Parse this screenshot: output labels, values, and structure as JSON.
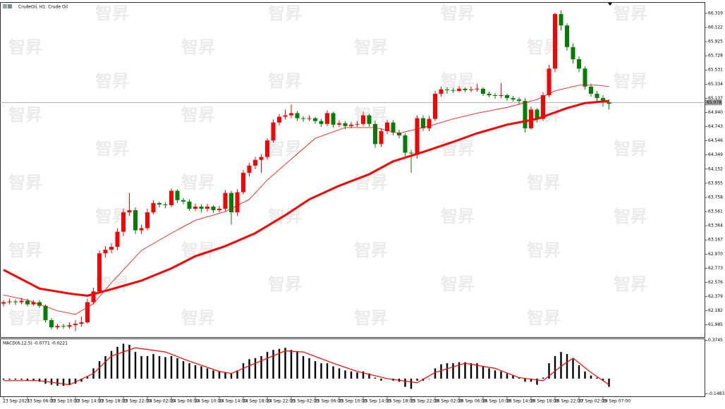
{
  "chart_data": {
    "type": "candlestick",
    "title": "CrudeOil, H1: Crude Oil",
    "watermark": "智昇",
    "up_color": "#ff0000",
    "down_color": "#008000",
    "candles": [
      [
        62.28,
        62.33,
        62.24,
        62.3
      ],
      [
        62.3,
        62.35,
        62.27,
        62.31
      ],
      [
        62.31,
        62.34,
        62.26,
        62.3
      ],
      [
        62.3,
        62.36,
        62.27,
        62.32
      ],
      [
        62.32,
        62.35,
        62.24,
        62.27
      ],
      [
        62.27,
        62.33,
        62.25,
        62.3
      ],
      [
        62.3,
        62.33,
        62.22,
        62.25
      ],
      [
        62.25,
        62.27,
        62.02,
        62.05
      ],
      [
        62.05,
        62.08,
        61.92,
        61.95
      ],
      [
        61.95,
        62.0,
        61.92,
        61.97
      ],
      [
        61.97,
        62.0,
        61.93,
        61.96
      ],
      [
        61.96,
        62.02,
        61.93,
        61.98
      ],
      [
        61.98,
        62.05,
        61.9,
        62.0
      ],
      [
        62.0,
        62.1,
        61.96,
        62.02
      ],
      [
        62.02,
        62.35,
        62.0,
        62.3
      ],
      [
        62.3,
        62.5,
        62.27,
        62.45
      ],
      [
        62.45,
        63.02,
        62.42,
        62.98
      ],
      [
        62.98,
        63.08,
        62.92,
        63.03
      ],
      [
        63.03,
        63.12,
        62.98,
        63.07
      ],
      [
        63.07,
        63.33,
        63.02,
        63.28
      ],
      [
        63.28,
        63.6,
        63.22,
        63.55
      ],
      [
        63.55,
        63.82,
        63.5,
        63.58
      ],
      [
        63.58,
        63.62,
        63.25,
        63.3
      ],
      [
        63.3,
        63.38,
        63.25,
        63.33
      ],
      [
        63.33,
        63.6,
        63.3,
        63.55
      ],
      [
        63.55,
        63.72,
        63.52,
        63.68
      ],
      [
        63.68,
        63.7,
        63.62,
        63.66
      ],
      [
        63.66,
        63.69,
        63.61,
        63.65
      ],
      [
        63.65,
        63.88,
        63.62,
        63.85
      ],
      [
        63.85,
        63.87,
        63.68,
        63.72
      ],
      [
        63.72,
        63.75,
        63.66,
        63.7
      ],
      [
        63.7,
        63.73,
        63.57,
        63.6
      ],
      [
        63.6,
        63.67,
        63.57,
        63.63
      ],
      [
        63.63,
        63.66,
        63.55,
        63.6
      ],
      [
        63.6,
        63.67,
        63.56,
        63.63
      ],
      [
        63.63,
        63.65,
        63.54,
        63.58
      ],
      [
        63.58,
        63.64,
        63.55,
        63.6
      ],
      [
        63.6,
        63.86,
        63.57,
        63.82
      ],
      [
        63.82,
        63.85,
        63.38,
        63.55
      ],
      [
        63.55,
        63.87,
        63.5,
        63.83
      ],
      [
        63.83,
        64.14,
        63.8,
        64.1
      ],
      [
        64.1,
        64.24,
        64.05,
        64.2
      ],
      [
        64.2,
        64.32,
        64.15,
        64.28
      ],
      [
        64.28,
        64.36,
        64.1,
        64.32
      ],
      [
        64.32,
        64.58,
        64.28,
        64.55
      ],
      [
        64.55,
        64.84,
        64.52,
        64.8
      ],
      [
        64.8,
        64.92,
        64.76,
        64.88
      ],
      [
        64.88,
        64.98,
        64.84,
        64.9
      ],
      [
        64.9,
        65.05,
        64.86,
        64.93
      ],
      [
        64.93,
        64.96,
        64.82,
        64.86
      ],
      [
        64.86,
        64.89,
        64.81,
        64.85
      ],
      [
        64.85,
        64.9,
        64.82,
        64.86
      ],
      [
        64.86,
        64.88,
        64.78,
        64.82
      ],
      [
        64.82,
        64.85,
        64.74,
        64.78
      ],
      [
        64.78,
        64.97,
        64.75,
        64.93
      ],
      [
        64.93,
        64.95,
        64.73,
        64.77
      ],
      [
        64.77,
        64.83,
        64.74,
        64.79
      ],
      [
        64.79,
        64.82,
        64.71,
        64.75
      ],
      [
        64.75,
        64.81,
        64.72,
        64.77
      ],
      [
        64.77,
        64.82,
        64.74,
        64.78
      ],
      [
        64.78,
        64.95,
        64.75,
        64.9
      ],
      [
        64.9,
        64.92,
        64.74,
        64.78
      ],
      [
        64.78,
        64.82,
        64.45,
        64.5
      ],
      [
        64.5,
        64.72,
        64.46,
        64.68
      ],
      [
        64.68,
        64.84,
        64.64,
        64.8
      ],
      [
        64.8,
        64.83,
        64.62,
        64.66
      ],
      [
        64.66,
        64.7,
        64.58,
        64.62
      ],
      [
        64.62,
        64.65,
        64.33,
        64.38
      ],
      [
        64.38,
        64.42,
        64.1,
        64.37
      ],
      [
        64.37,
        64.9,
        64.3,
        64.86
      ],
      [
        64.86,
        64.9,
        64.68,
        64.72
      ],
      [
        64.72,
        64.89,
        64.68,
        64.85
      ],
      [
        64.85,
        65.24,
        64.82,
        65.2
      ],
      [
        65.2,
        65.3,
        65.16,
        65.26
      ],
      [
        65.26,
        65.29,
        65.2,
        65.25
      ],
      [
        65.25,
        65.28,
        65.21,
        65.24
      ],
      [
        65.24,
        65.31,
        65.22,
        65.27
      ],
      [
        65.27,
        65.29,
        65.22,
        65.25
      ],
      [
        65.25,
        65.3,
        65.22,
        65.26
      ],
      [
        65.26,
        65.34,
        65.23,
        65.27
      ],
      [
        65.27,
        65.29,
        65.17,
        65.2
      ],
      [
        65.2,
        65.23,
        65.15,
        65.18
      ],
      [
        65.18,
        65.21,
        65.13,
        65.17
      ],
      [
        65.17,
        65.35,
        65.14,
        65.18
      ],
      [
        65.18,
        65.2,
        65.1,
        65.14
      ],
      [
        65.14,
        65.17,
        65.09,
        65.12
      ],
      [
        65.12,
        65.15,
        65.05,
        65.1
      ],
      [
        65.1,
        65.14,
        64.66,
        64.72
      ],
      [
        64.72,
        65.02,
        64.7,
        64.98
      ],
      [
        64.98,
        65.0,
        64.8,
        64.85
      ],
      [
        64.85,
        65.22,
        64.82,
        65.18
      ],
      [
        65.18,
        65.6,
        65.15,
        65.55
      ],
      [
        65.55,
        66.33,
        65.5,
        66.31
      ],
      [
        66.31,
        66.36,
        66.08,
        66.15
      ],
      [
        66.15,
        66.18,
        65.8,
        65.85
      ],
      [
        65.85,
        65.9,
        65.62,
        65.68
      ],
      [
        65.68,
        65.72,
        65.5,
        65.55
      ],
      [
        65.55,
        65.58,
        65.26,
        65.3
      ],
      [
        65.3,
        65.34,
        65.16,
        65.2
      ],
      [
        65.2,
        65.24,
        65.1,
        65.14
      ],
      [
        65.14,
        65.18,
        65.02,
        65.08
      ],
      [
        65.08,
        65.12,
        64.98,
        65.06
      ]
    ],
    "series": [
      {
        "color": "#ff0000",
        "width": 3,
        "x": [
          0,
          3,
          6,
          11,
          14,
          18,
          23,
          28,
          32,
          37,
          42,
          47,
          51,
          56,
          61,
          65,
          70,
          75,
          79,
          84,
          89,
          94,
          97,
          101
        ],
        "values": [
          62.75,
          62.62,
          62.49,
          62.42,
          62.39,
          62.48,
          62.6,
          62.77,
          62.94,
          63.08,
          63.26,
          63.51,
          63.73,
          63.92,
          64.08,
          64.26,
          64.39,
          64.53,
          64.65,
          64.77,
          64.85,
          65.0,
          65.07,
          65.1
        ]
      },
      {
        "color": "#ff0000",
        "width": 0.8,
        "x": [
          0,
          4,
          9,
          12,
          15,
          18,
          23,
          28,
          32,
          37,
          41,
          44,
          48,
          52,
          57,
          62,
          66,
          71,
          75,
          79,
          84,
          89,
          92,
          96,
          99,
          101
        ],
        "values": [
          62.4,
          62.33,
          62.18,
          62.13,
          62.28,
          62.57,
          63.02,
          63.26,
          63.44,
          63.56,
          63.73,
          64.0,
          64.29,
          64.58,
          64.73,
          64.73,
          64.65,
          64.75,
          64.85,
          64.93,
          65.01,
          65.12,
          65.24,
          65.32,
          65.32,
          65.3
        ]
      }
    ],
    "last_price": 65.078,
    "ylim": [
      61.81,
      66.47
    ],
    "yticks": [
      66.319,
      66.122,
      65.925,
      65.728,
      65.531,
      65.334,
      65.137,
      {
        "value": 64.94,
        "label": "64.940"
      },
      64.743,
      64.546,
      64.349,
      64.152,
      63.955,
      63.758,
      63.561,
      63.364,
      63.167,
      {
        "value": 62.97,
        "label": "62.970"
      },
      62.773,
      62.576,
      62.379,
      62.182,
      61.985
    ],
    "xticks": [
      {
        "value": 0,
        "label": "23 Sep 2025"
      },
      {
        "value": 4,
        "label": "23 Sep 06:00"
      },
      {
        "value": 8,
        "label": "23 Sep 10:00"
      },
      {
        "value": 12,
        "label": "23 Sep 14:00"
      },
      {
        "value": 16,
        "label": "23 Sep 18:00"
      },
      {
        "value": 20,
        "label": "23 Sep 22:00"
      },
      {
        "value": 24,
        "label": "24 Sep 02:00"
      },
      {
        "value": 28,
        "label": "24 Sep 06:00"
      },
      {
        "value": 32,
        "label": "24 Sep 10:00"
      },
      {
        "value": 36,
        "label": "24 Sep 14:00"
      },
      {
        "value": 40,
        "label": "24 Sep 18:00"
      },
      {
        "value": 44,
        "label": "24 Sep 22:00"
      },
      {
        "value": 48,
        "label": "25 Sep 02:00"
      },
      {
        "value": 52,
        "label": "25 Sep 06:00"
      },
      {
        "value": 56,
        "label": "25 Sep 10:00"
      },
      {
        "value": 60,
        "label": "25 Sep 14:00"
      },
      {
        "value": 64,
        "label": "25 Sep 18:00"
      },
      {
        "value": 68,
        "label": "25 Sep 22:00"
      },
      {
        "value": 72,
        "label": "26 Sep 02:00"
      },
      {
        "value": 76,
        "label": "26 Sep 06:00"
      },
      {
        "value": 80,
        "label": "26 Sep 10:00"
      },
      {
        "value": 84,
        "label": "26 Sep 14:00"
      },
      {
        "value": 88,
        "label": "26 Sep 18:00"
      },
      {
        "value": 92,
        "label": "26 Sep 22:00"
      },
      {
        "value": 96,
        "label": "27 Sep 02:00"
      },
      {
        "value": 100,
        "label": "29 Sep 07:00"
      }
    ],
    "macd": {
      "title": "MACD(6,12,5) -0.0771 -0.0221",
      "histogram_color": "#000000",
      "histogram": [
        -0.01,
        -0.01,
        -0.01,
        -0.01,
        -0.02,
        -0.02,
        -0.03,
        -0.05,
        -0.06,
        -0.07,
        -0.07,
        -0.06,
        -0.05,
        -0.03,
        0.02,
        0.1,
        0.17,
        0.22,
        0.27,
        0.31,
        0.34,
        0.33,
        0.26,
        0.22,
        0.22,
        0.24,
        0.22,
        0.21,
        0.22,
        0.2,
        0.17,
        0.15,
        0.13,
        0.12,
        0.1,
        0.08,
        0.07,
        0.06,
        0.05,
        0.08,
        0.15,
        0.19,
        0.2,
        0.22,
        0.26,
        0.28,
        0.29,
        0.3,
        0.28,
        0.26,
        0.22,
        0.2,
        0.17,
        0.15,
        0.15,
        0.12,
        0.1,
        0.08,
        0.07,
        0.06,
        0.07,
        0.05,
        0.01,
        -0.02,
        0,
        -0.02,
        -0.03,
        -0.08,
        -0.1,
        -0.02,
        -0.02,
        0,
        0.1,
        0.14,
        0.15,
        0.15,
        0.16,
        0.16,
        0.15,
        0.15,
        0.12,
        0.1,
        0.08,
        0.07,
        0.05,
        0.03,
        0.01,
        -0.03,
        -0.03,
        -0.06,
        0.01,
        0.15,
        0.22,
        0.26,
        0.24,
        0.19,
        0.13,
        0.07,
        0.03,
        0.01,
        -0.02,
        -0.08
      ],
      "signal_color": "#ff0000",
      "signal_x": [
        0,
        6,
        11,
        15,
        18,
        22,
        27,
        31,
        36,
        38,
        42,
        47,
        50,
        55,
        59,
        64,
        69,
        72,
        77,
        82,
        86,
        90,
        93,
        95,
        98,
        101
      ],
      "signal": [
        -0.02,
        -0.02,
        -0.06,
        0.05,
        0.22,
        0.3,
        0.26,
        0.17,
        0.07,
        0.05,
        0.15,
        0.27,
        0.26,
        0.15,
        0.07,
        0,
        -0.04,
        0.06,
        0.15,
        0.1,
        0.01,
        -0.02,
        0.12,
        0.2,
        0.06,
        -0.06
      ],
      "ylim": [
        -0.176,
        0.388
      ],
      "yticks": [
        0.3745,
        -0.1483
      ]
    }
  }
}
